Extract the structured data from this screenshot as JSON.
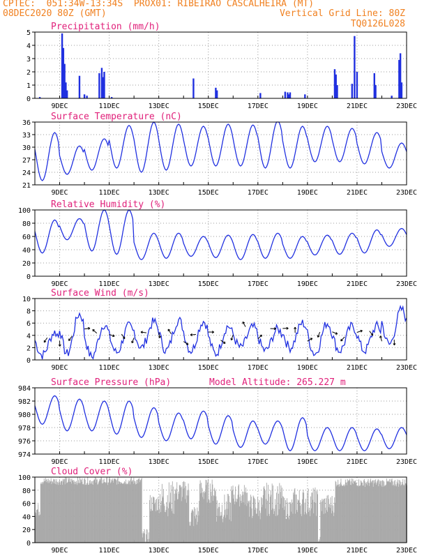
{
  "header": {
    "line1_left": "CPTEC:  051:34W-13:34S  PROX01: RIBEIRAO CASCALHEIRA (MT)",
    "line2_left": "08DEC2020 80Z (GMT)",
    "line2_right": "Vertical Grid Line: 80Z",
    "line3_right": "TQ0126L028"
  },
  "colors": {
    "header": "#f08020",
    "title": "#e0207a",
    "line": "#2030e0",
    "cloud": "#a8a8a8"
  },
  "chart_data": [
    {
      "type": "bar",
      "title": "Precipitation (mm/h)",
      "ylim": [
        0,
        5
      ],
      "yticks": [
        "0",
        "1",
        "2",
        "3",
        "4",
        "5"
      ],
      "xticks": [
        "9DEC",
        "11DEC",
        "13DEC",
        "15DEC",
        "17DEC",
        "19DEC",
        "21DEC",
        "23DEC"
      ],
      "x_days": [
        9,
        11,
        13,
        15,
        17,
        19,
        21,
        23
      ],
      "xlim": [
        8.0,
        23.0
      ],
      "events": [
        [
          8.2,
          0.1
        ],
        [
          9.1,
          4.9
        ],
        [
          9.15,
          3.8
        ],
        [
          9.2,
          2.6
        ],
        [
          9.25,
          1.2
        ],
        [
          9.3,
          0.6
        ],
        [
          9.8,
          1.7
        ],
        [
          10.0,
          0.3
        ],
        [
          10.1,
          0.2
        ],
        [
          10.6,
          1.9
        ],
        [
          10.7,
          2.3
        ],
        [
          10.75,
          1.6
        ],
        [
          10.8,
          2.0
        ],
        [
          11.1,
          0.1
        ],
        [
          14.4,
          1.5
        ],
        [
          15.3,
          0.8
        ],
        [
          15.35,
          0.6
        ],
        [
          17.1,
          0.4
        ],
        [
          18.1,
          0.5
        ],
        [
          18.2,
          0.45
        ],
        [
          18.25,
          0.3
        ],
        [
          18.3,
          0.45
        ],
        [
          18.9,
          0.3
        ],
        [
          20.1,
          2.2
        ],
        [
          20.15,
          1.8
        ],
        [
          20.2,
          1.0
        ],
        [
          20.8,
          1.1
        ],
        [
          20.9,
          4.7
        ],
        [
          21.0,
          2.0
        ],
        [
          21.7,
          1.9
        ],
        [
          21.75,
          1.0
        ],
        [
          22.4,
          0.2
        ],
        [
          22.7,
          2.9
        ],
        [
          22.75,
          3.4
        ],
        [
          22.8,
          1.2
        ]
      ]
    },
    {
      "type": "line",
      "title": "Surface Temperature (nC)",
      "ylim": [
        21,
        36
      ],
      "yticks": [
        "21",
        "24",
        "27",
        "30",
        "33",
        "36"
      ],
      "xticks": [
        "9DEC",
        "11DEC",
        "13DEC",
        "15DEC",
        "17DEC",
        "19DEC",
        "21DEC",
        "23DEC"
      ],
      "x_days": [
        9,
        11,
        13,
        15,
        17,
        19,
        21,
        23
      ],
      "xlim": [
        8.0,
        23.0
      ],
      "daily_max": [
        33.5,
        30.3,
        32.0,
        35.2,
        36.0,
        35.5,
        35.0,
        35.5,
        35.3,
        36.3,
        35.0,
        35.0,
        34.5,
        33.5,
        31.0
      ],
      "daily_min": [
        22.0,
        23.5,
        24.5,
        25.0,
        24.0,
        24.5,
        25.5,
        25.5,
        25.5,
        25.0,
        25.0,
        26.5,
        26.5,
        26.0,
        25.0
      ]
    },
    {
      "type": "line",
      "title": "Relative Humidity (%)",
      "ylim": [
        0,
        100
      ],
      "yticks": [
        "0",
        "20",
        "40",
        "60",
        "80",
        "100"
      ],
      "xticks": [
        "9DEC",
        "11DEC",
        "13DEC",
        "15DEC",
        "17DEC",
        "19DEC",
        "21DEC",
        "23DEC"
      ],
      "x_days": [
        9,
        11,
        13,
        15,
        17,
        19,
        21,
        23
      ],
      "xlim": [
        8.0,
        23.0
      ],
      "daily_max": [
        85,
        87,
        100,
        100,
        65,
        65,
        60,
        62,
        63,
        65,
        60,
        62,
        65,
        70,
        72
      ],
      "daily_min": [
        35,
        55,
        38,
        33,
        25,
        27,
        30,
        28,
        25,
        27,
        27,
        32,
        33,
        35,
        45
      ]
    },
    {
      "type": "line",
      "title": "Surface Wind (m/s)",
      "ylim": [
        0,
        10
      ],
      "yticks": [
        "0",
        "2",
        "4",
        "6",
        "8",
        "10"
      ],
      "xticks": [
        "9DEC",
        "11DEC",
        "13DEC",
        "15DEC",
        "17DEC",
        "19DEC",
        "21DEC",
        "23DEC"
      ],
      "x_days": [
        9,
        11,
        13,
        15,
        17,
        19,
        21,
        23
      ],
      "xlim": [
        8.0,
        23.0
      ],
      "daily_max": [
        4.5,
        7.5,
        5.8,
        5.5,
        6.2,
        6.5,
        6.3,
        5.5,
        5.3,
        5.0,
        6.0,
        6.0,
        5.5,
        5.5,
        8.2
      ],
      "daily_min": [
        0.8,
        1.0,
        0.5,
        1.2,
        2.0,
        1.5,
        1.5,
        1.0,
        2.0,
        1.5,
        2.0,
        1.0,
        1.5,
        1.5,
        2.5
      ]
    },
    {
      "type": "line",
      "title": "Surface Pressure (hPa)",
      "annotation": "Model Altitude: 265.227 m",
      "ylim": [
        974,
        984
      ],
      "yticks": [
        "974",
        "976",
        "978",
        "980",
        "982",
        "984"
      ],
      "xticks": [
        "9DEC",
        "11DEC",
        "13DEC",
        "15DEC",
        "17DEC",
        "19DEC",
        "21DEC",
        "23DEC"
      ],
      "x_days": [
        9,
        11,
        13,
        15,
        17,
        19,
        21,
        23
      ],
      "xlim": [
        8.0,
        23.0
      ],
      "daily_max": [
        982.8,
        982.3,
        982.0,
        982.0,
        981.0,
        980.2,
        980.5,
        979.8,
        979.0,
        979.0,
        979.5,
        978.0,
        978.0,
        977.8,
        978.0
      ],
      "daily_min": [
        978.5,
        977.5,
        977.5,
        977.0,
        976.5,
        976.0,
        976.3,
        975.5,
        975.0,
        975.5,
        974.5,
        974.5,
        974.5,
        974.5,
        974.8
      ]
    },
    {
      "type": "area",
      "title": "Cloud Cover (%)",
      "ylim": [
        0,
        100
      ],
      "yticks": [
        "0",
        "20",
        "40",
        "60",
        "80",
        "100"
      ],
      "xticks": [
        "9DEC",
        "11DEC",
        "13DEC",
        "15DEC",
        "17DEC",
        "19DEC",
        "21DEC",
        "23DEC"
      ],
      "x_days": [
        9,
        11,
        13,
        15,
        17,
        19,
        21,
        23
      ],
      "xlim": [
        8.0,
        23.0
      ],
      "segments": [
        [
          8.0,
          8.2,
          40,
          60
        ],
        [
          8.2,
          12.3,
          88,
          100
        ],
        [
          12.3,
          12.6,
          0,
          20
        ],
        [
          12.6,
          13.0,
          45,
          75
        ],
        [
          13.0,
          13.6,
          40,
          95
        ],
        [
          13.6,
          14.2,
          60,
          95
        ],
        [
          14.2,
          14.6,
          20,
          60
        ],
        [
          14.6,
          15.3,
          60,
          98
        ],
        [
          15.3,
          15.9,
          30,
          75
        ],
        [
          15.9,
          16.6,
          55,
          90
        ],
        [
          16.6,
          17.2,
          35,
          75
        ],
        [
          17.2,
          18.0,
          40,
          92
        ],
        [
          18.0,
          18.4,
          35,
          70
        ],
        [
          18.4,
          19.4,
          40,
          85
        ],
        [
          19.4,
          19.5,
          0,
          10
        ],
        [
          19.5,
          20.1,
          40,
          75
        ],
        [
          20.1,
          23.0,
          85,
          98
        ]
      ]
    }
  ]
}
